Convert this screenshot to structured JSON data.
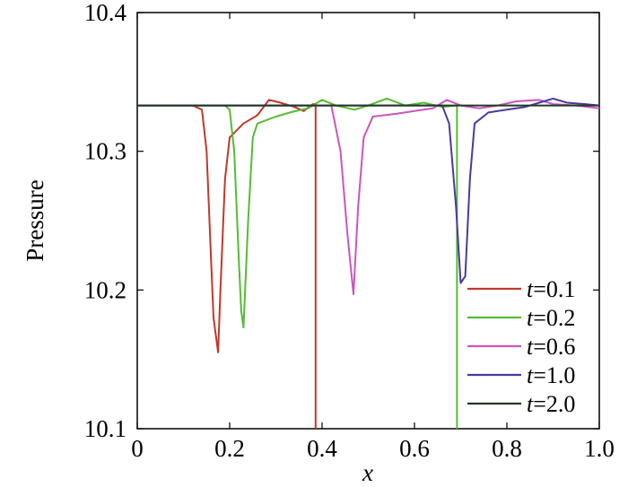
{
  "chart_data": {
    "type": "line",
    "xlabel": "x",
    "ylabel": "Pressure",
    "xlim": [
      0,
      1.0
    ],
    "ylim": [
      10.1,
      10.4
    ],
    "x_ticks": [
      "0",
      "0.2",
      "0.4",
      "0.6",
      "0.8",
      "1.0"
    ],
    "y_ticks": [
      "10.1",
      "10.2",
      "10.3",
      "10.4"
    ],
    "grid": false,
    "legend_position": "bottom-right",
    "series": [
      {
        "name": "t=0.1",
        "label_prefix": "t",
        "label_suffix": "=0.1",
        "color": "#c0392b",
        "points": [
          [
            0,
            10.333
          ],
          [
            0.12,
            10.333
          ],
          [
            0.14,
            10.33
          ],
          [
            0.15,
            10.3
          ],
          [
            0.16,
            10.22
          ],
          [
            0.165,
            10.18
          ],
          [
            0.175,
            10.155
          ],
          [
            0.18,
            10.2
          ],
          [
            0.19,
            10.28
          ],
          [
            0.2,
            10.31
          ],
          [
            0.23,
            10.32
          ],
          [
            0.26,
            10.326
          ],
          [
            0.285,
            10.337
          ],
          [
            0.31,
            10.335
          ],
          [
            0.34,
            10.332
          ],
          [
            0.36,
            10.329
          ],
          [
            0.38,
            10.334
          ],
          [
            0.386,
            10.334
          ],
          [
            0.386,
            10.1
          ]
        ]
      },
      {
        "name": "t=0.2",
        "label_prefix": "t",
        "label_suffix": "=0.2",
        "color": "#55bb33",
        "points": [
          [
            0,
            10.333
          ],
          [
            0.19,
            10.333
          ],
          [
            0.2,
            10.33
          ],
          [
            0.21,
            10.3
          ],
          [
            0.22,
            10.22
          ],
          [
            0.225,
            10.185
          ],
          [
            0.23,
            10.173
          ],
          [
            0.24,
            10.25
          ],
          [
            0.25,
            10.31
          ],
          [
            0.26,
            10.32
          ],
          [
            0.3,
            10.325
          ],
          [
            0.33,
            10.328
          ],
          [
            0.37,
            10.331
          ],
          [
            0.4,
            10.337
          ],
          [
            0.43,
            10.333
          ],
          [
            0.47,
            10.33
          ],
          [
            0.5,
            10.333
          ],
          [
            0.54,
            10.338
          ],
          [
            0.58,
            10.333
          ],
          [
            0.62,
            10.335
          ],
          [
            0.66,
            10.332
          ],
          [
            0.69,
            10.333
          ],
          [
            0.692,
            10.333
          ],
          [
            0.692,
            10.1
          ]
        ]
      },
      {
        "name": "t=0.6",
        "label_prefix": "t",
        "label_suffix": "=0.6",
        "color": "#cc55bb",
        "points": [
          [
            0,
            10.333
          ],
          [
            0.42,
            10.333
          ],
          [
            0.44,
            10.3
          ],
          [
            0.455,
            10.24
          ],
          [
            0.468,
            10.197
          ],
          [
            0.478,
            10.26
          ],
          [
            0.49,
            10.31
          ],
          [
            0.51,
            10.325
          ],
          [
            0.56,
            10.327
          ],
          [
            0.6,
            10.329
          ],
          [
            0.64,
            10.331
          ],
          [
            0.67,
            10.337
          ],
          [
            0.7,
            10.333
          ],
          [
            0.74,
            10.331
          ],
          [
            0.78,
            10.333
          ],
          [
            0.82,
            10.336
          ],
          [
            0.87,
            10.337
          ],
          [
            0.9,
            10.334
          ],
          [
            0.95,
            10.333
          ],
          [
            1.0,
            10.331
          ]
        ]
      },
      {
        "name": "t=1.0",
        "label_prefix": "t",
        "label_suffix": "=1.0",
        "color": "#4a3aa0",
        "points": [
          [
            0,
            10.333
          ],
          [
            0.66,
            10.333
          ],
          [
            0.675,
            10.32
          ],
          [
            0.69,
            10.26
          ],
          [
            0.7,
            10.205
          ],
          [
            0.71,
            10.21
          ],
          [
            0.72,
            10.28
          ],
          [
            0.73,
            10.32
          ],
          [
            0.76,
            10.328
          ],
          [
            0.8,
            10.33
          ],
          [
            0.84,
            10.332
          ],
          [
            0.87,
            10.335
          ],
          [
            0.9,
            10.338
          ],
          [
            0.93,
            10.335
          ],
          [
            0.97,
            10.334
          ],
          [
            1.0,
            10.333
          ]
        ]
      },
      {
        "name": "t=2.0",
        "label_prefix": "t",
        "label_suffix": "=2.0",
        "color": "#1f3a24",
        "points": [
          [
            0,
            10.333
          ],
          [
            1.0,
            10.333
          ]
        ]
      }
    ]
  }
}
